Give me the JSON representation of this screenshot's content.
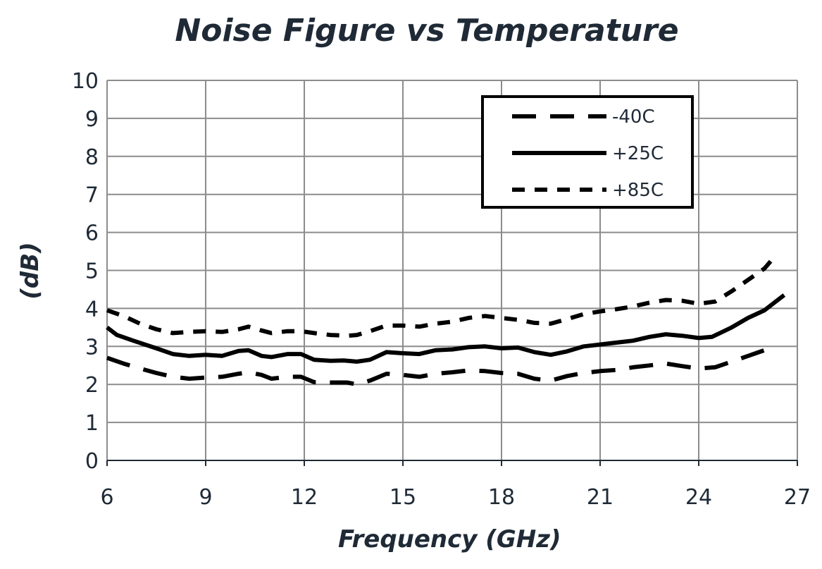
{
  "chart_data": {
    "type": "line",
    "title": "Noise Figure vs Temperature",
    "xlabel": "Frequency (GHz)",
    "ylabel": "(dB)",
    "xlim": [
      6,
      27
    ],
    "ylim": [
      0,
      10
    ],
    "xticks": [
      6,
      9,
      12,
      15,
      18,
      21,
      24,
      27
    ],
    "yticks": [
      0,
      1,
      2,
      3,
      4,
      5,
      6,
      7,
      8,
      9,
      10
    ],
    "grid": true,
    "legend_position": "top-right",
    "series": [
      {
        "name": "-40C",
        "line_style": "long-dash",
        "x": [
          6,
          6.5,
          7,
          7.5,
          8,
          8.5,
          9,
          9.5,
          10,
          10.3,
          10.7,
          11,
          11.5,
          11.9,
          12.3,
          12.8,
          13.3,
          13.6,
          14,
          14.5,
          15,
          15.5,
          16,
          16.5,
          17,
          17.5,
          18,
          18.5,
          19,
          19.5,
          20,
          20.5,
          21,
          21.5,
          22,
          22.5,
          23,
          23.5,
          24,
          24.5,
          25,
          25.5,
          26,
          26.2
        ],
        "y": [
          2.7,
          2.55,
          2.42,
          2.3,
          2.2,
          2.15,
          2.18,
          2.2,
          2.28,
          2.32,
          2.25,
          2.15,
          2.2,
          2.2,
          2.06,
          2.05,
          2.05,
          2.0,
          2.1,
          2.28,
          2.25,
          2.2,
          2.28,
          2.32,
          2.37,
          2.35,
          2.3,
          2.28,
          2.15,
          2.1,
          2.22,
          2.3,
          2.35,
          2.38,
          2.45,
          2.5,
          2.55,
          2.48,
          2.42,
          2.45,
          2.6,
          2.75,
          2.9,
          3.0
        ]
      },
      {
        "name": "+25C",
        "line_style": "solid",
        "x": [
          6,
          6.3,
          6.8,
          7.5,
          8,
          8.5,
          9,
          9.5,
          10,
          10.3,
          10.7,
          11,
          11.5,
          11.9,
          12.3,
          12.8,
          13.2,
          13.6,
          14,
          14.5,
          15,
          15.5,
          16,
          16.5,
          17,
          17.5,
          18,
          18.5,
          19,
          19.5,
          20,
          20.5,
          21,
          21.5,
          22,
          22.5,
          23,
          23.5,
          24,
          24.4,
          25,
          25.5,
          26,
          26.3,
          26.6
        ],
        "y": [
          3.5,
          3.3,
          3.15,
          2.95,
          2.8,
          2.75,
          2.78,
          2.75,
          2.88,
          2.9,
          2.75,
          2.72,
          2.8,
          2.8,
          2.65,
          2.62,
          2.63,
          2.6,
          2.65,
          2.85,
          2.82,
          2.8,
          2.9,
          2.92,
          2.98,
          3.0,
          2.95,
          2.97,
          2.85,
          2.78,
          2.87,
          3.0,
          3.05,
          3.1,
          3.15,
          3.25,
          3.32,
          3.28,
          3.22,
          3.25,
          3.5,
          3.75,
          3.95,
          4.15,
          4.35
        ]
      },
      {
        "name": "+85C",
        "line_style": "short-dash",
        "x": [
          6,
          6.5,
          7,
          7.5,
          8,
          8.5,
          9,
          9.5,
          10,
          10.3,
          10.7,
          11,
          11.5,
          11.9,
          12.3,
          12.8,
          13.3,
          13.6,
          14,
          14.5,
          15,
          15.5,
          16,
          16.5,
          17,
          17.5,
          18,
          18.5,
          19,
          19.5,
          20,
          20.5,
          21,
          21.5,
          22,
          22.5,
          23,
          23.5,
          24,
          24.5,
          25,
          25.5,
          26,
          26.3
        ],
        "y": [
          3.95,
          3.8,
          3.6,
          3.45,
          3.35,
          3.38,
          3.4,
          3.38,
          3.45,
          3.52,
          3.42,
          3.35,
          3.4,
          3.4,
          3.35,
          3.3,
          3.28,
          3.3,
          3.4,
          3.55,
          3.55,
          3.52,
          3.6,
          3.65,
          3.75,
          3.8,
          3.75,
          3.7,
          3.62,
          3.6,
          3.72,
          3.85,
          3.92,
          3.98,
          4.05,
          4.15,
          4.22,
          4.2,
          4.12,
          4.18,
          4.45,
          4.75,
          5.05,
          5.35
        ]
      }
    ]
  }
}
